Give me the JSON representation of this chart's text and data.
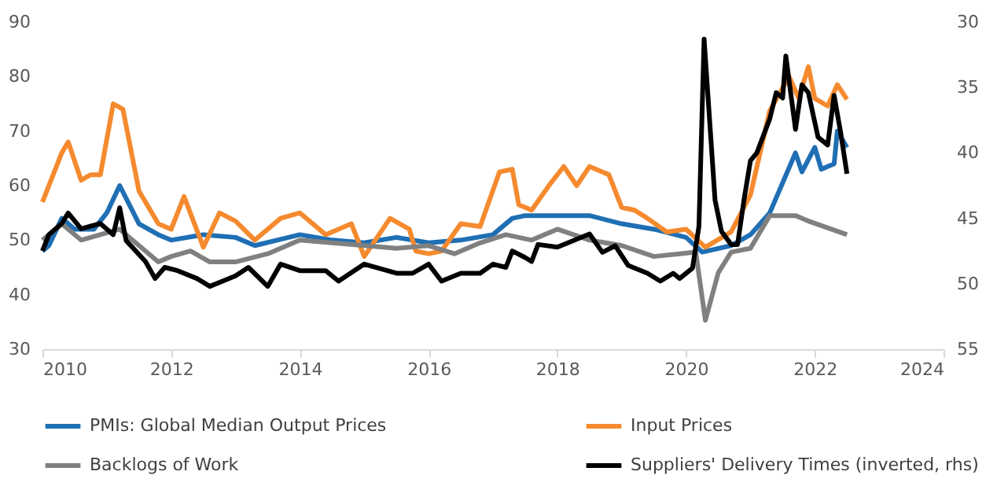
{
  "chart_data": {
    "type": "line",
    "xlim": [
      2010,
      2024
    ],
    "xticks": [
      2010,
      2012,
      2014,
      2016,
      2018,
      2020,
      2022,
      2024
    ],
    "ylim": [
      30,
      90
    ],
    "yticks": [
      30,
      40,
      50,
      60,
      70,
      80,
      90
    ],
    "y2lim": [
      55,
      30
    ],
    "y2ticks": [
      30,
      35,
      40,
      45,
      50,
      55
    ],
    "grid": false,
    "legend": "bottom",
    "marker": "none",
    "line_style": "solid",
    "series": [
      {
        "name": "PMIs: Global Median Output Prices",
        "color": "#1f6fb4",
        "x": [
          2010.0,
          2010.1,
          2010.3,
          2010.5,
          2010.8,
          2011.0,
          2011.2,
          2011.5,
          2011.8,
          2012.0,
          2012.5,
          2013.0,
          2013.3,
          2014.0,
          2014.5,
          2015.0,
          2015.5,
          2016.0,
          2016.5,
          2017.0,
          2017.3,
          2017.5,
          2018.0,
          2018.5,
          2019.0,
          2019.5,
          2020.0,
          2020.25,
          2020.7,
          2021.0,
          2021.3,
          2021.7,
          2021.8,
          2022.0,
          2022.1,
          2022.3,
          2022.35,
          2022.5
        ],
        "values": [
          48,
          49,
          54,
          52,
          52,
          55,
          60,
          53,
          51,
          50,
          51,
          50.5,
          49,
          51,
          50,
          49.5,
          50.5,
          49.5,
          50,
          51,
          54,
          54.5,
          54.5,
          54.5,
          53,
          52,
          50.5,
          47.8,
          49,
          51,
          55,
          66,
          62.5,
          67,
          63,
          64,
          70,
          67
        ]
      },
      {
        "name": "Input Prices",
        "color": "#f58a2e",
        "x": [
          2010.0,
          2010.3,
          2010.4,
          2010.6,
          2010.75,
          2010.9,
          2011.1,
          2011.25,
          2011.5,
          2011.8,
          2012.0,
          2012.2,
          2012.5,
          2012.75,
          2013.0,
          2013.3,
          2013.7,
          2014.0,
          2014.4,
          2014.8,
          2015.0,
          2015.4,
          2015.7,
          2015.8,
          2016.0,
          2016.2,
          2016.5,
          2016.8,
          2017.1,
          2017.3,
          2017.4,
          2017.6,
          2017.9,
          2018.1,
          2018.3,
          2018.5,
          2018.8,
          2019.0,
          2019.2,
          2019.4,
          2019.7,
          2020.0,
          2020.3,
          2020.7,
          2021.0,
          2021.3,
          2021.6,
          2021.75,
          2021.9,
          2022.0,
          2022.2,
          2022.35,
          2022.5
        ],
        "values": [
          57,
          66,
          68,
          61,
          62,
          62,
          75,
          74,
          59,
          53,
          52,
          58,
          48.7,
          55,
          53.5,
          50,
          54,
          55,
          51,
          53,
          47,
          54,
          52,
          48,
          47.5,
          48,
          53,
          52.5,
          62.5,
          63,
          56.5,
          55.5,
          60.5,
          63.5,
          60,
          63.5,
          62,
          56,
          55.5,
          54,
          51.5,
          52,
          48.7,
          51.5,
          58.3,
          73.7,
          80,
          76,
          81.8,
          76,
          74.6,
          78.5,
          75.8
        ]
      },
      {
        "name": "Backlogs of Work",
        "color": "#808080",
        "x": [
          2010.0,
          2010.3,
          2010.6,
          2010.9,
          2011.2,
          2011.5,
          2011.8,
          2012.0,
          2012.3,
          2012.6,
          2013.0,
          2013.5,
          2014.0,
          2014.5,
          2015.0,
          2015.5,
          2016.0,
          2016.4,
          2016.8,
          2017.2,
          2017.6,
          2018.0,
          2018.5,
          2019.0,
          2019.5,
          2019.9,
          2020.15,
          2020.3,
          2020.5,
          2020.7,
          2021.0,
          2021.3,
          2021.7,
          2021.9,
          2022.5
        ],
        "values": [
          50,
          53,
          50,
          51,
          52,
          49,
          46,
          47,
          48,
          46,
          46,
          47.5,
          50,
          49.5,
          49,
          48.5,
          49,
          47.5,
          49.5,
          51,
          50,
          52,
          50,
          49,
          47,
          47.5,
          47.8,
          35.3,
          44,
          47.8,
          48.5,
          54.5,
          54.5,
          53.5,
          51
        ]
      },
      {
        "name": "Suppliers' Delivery Times (inverted, rhs)",
        "color": "#000000",
        "axis": "y2",
        "x": [
          2010.0,
          2010.1,
          2010.3,
          2010.4,
          2010.6,
          2010.9,
          2011.1,
          2011.2,
          2011.3,
          2011.6,
          2011.75,
          2011.9,
          2012.1,
          2012.4,
          2012.6,
          2012.8,
          2013.0,
          2013.2,
          2013.5,
          2013.7,
          2014.0,
          2014.4,
          2014.6,
          2015.0,
          2015.5,
          2015.75,
          2016.0,
          2016.2,
          2016.5,
          2016.8,
          2017.0,
          2017.2,
          2017.3,
          2017.5,
          2017.6,
          2017.7,
          2018.0,
          2018.3,
          2018.5,
          2018.7,
          2018.9,
          2019.1,
          2019.4,
          2019.6,
          2019.8,
          2019.9,
          2020.1,
          2020.2,
          2020.28,
          2020.45,
          2020.55,
          2020.7,
          2020.8,
          2020.9,
          2021.0,
          2021.1,
          2021.3,
          2021.4,
          2021.5,
          2021.55,
          2021.7,
          2021.8,
          2021.9,
          2022.05,
          2022.2,
          2022.3,
          2022.4,
          2022.5
        ],
        "values": [
          47.5,
          46.25,
          45.4,
          44.6,
          45.8,
          45.4,
          46.25,
          44.2,
          46.7,
          48.3,
          49.6,
          48.75,
          49,
          49.6,
          50.2,
          49.8,
          49.4,
          48.75,
          50.2,
          48.5,
          49,
          49,
          49.8,
          48.5,
          49.2,
          49.2,
          48.5,
          49.8,
          49.2,
          49.2,
          48.5,
          48.75,
          47.5,
          48,
          48.3,
          47,
          47.2,
          46.6,
          46.2,
          47.6,
          47.1,
          48.6,
          49.2,
          49.8,
          49.2,
          49.6,
          48.8,
          45.6,
          31.3,
          43.6,
          46,
          47,
          47,
          43.6,
          40.6,
          40,
          37.4,
          35.4,
          35.8,
          32.6,
          38.2,
          34.8,
          35.4,
          38.8,
          39.4,
          35.6,
          38.4,
          41.6
        ]
      }
    ]
  }
}
